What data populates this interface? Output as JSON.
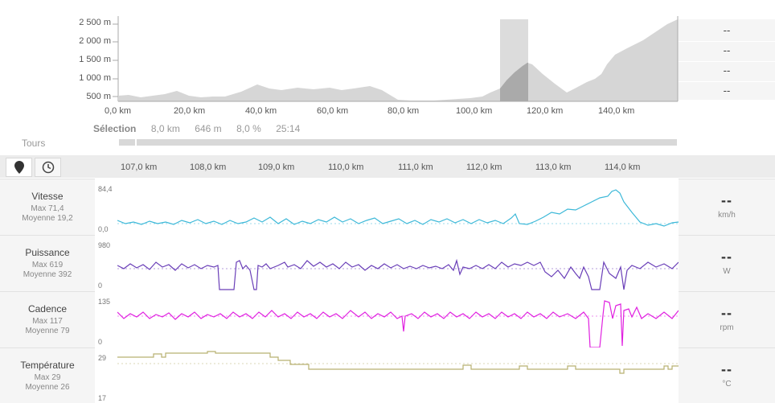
{
  "profile": {
    "y_ticks": [
      "2 500 m",
      "2 000 m",
      "1 500 m",
      "1 000 m",
      "500 m"
    ],
    "x_ticks": [
      "0,0 km",
      "20,0 km",
      "40,0 km",
      "60,0 km",
      "80,0 km",
      "100,0 km",
      "120,0 km",
      "140,0 km"
    ],
    "selection_range_km": [
      105,
      113
    ]
  },
  "selection": {
    "label": "Sélection",
    "distance": "8,0 km",
    "elevation": "646 m",
    "grade": "8,0 %",
    "time": "25:14"
  },
  "laps": {
    "label": "Tours"
  },
  "side_values": [
    "--",
    "--",
    "--",
    "--"
  ],
  "toolbar": {
    "location_icon": "location-pin-icon",
    "clock_icon": "clock-icon"
  },
  "detail_axis": {
    "ticks": [
      "107,0 km",
      "108,0 km",
      "109,0 km",
      "110,0 km",
      "111,0 km",
      "112,0 km",
      "113,0 km",
      "114,0 km"
    ]
  },
  "metrics": [
    {
      "name": "Vitesse",
      "max": "Max 71,4",
      "avg": "Moyenne 19,2",
      "top": "84,4",
      "bottom": "0,0",
      "value": "--",
      "unit": "km/h",
      "color": "#3cb8d8"
    },
    {
      "name": "Puissance",
      "max": "Max 619",
      "avg": "Moyenne 392",
      "top": "980",
      "bottom": "0",
      "value": "--",
      "unit": "W",
      "color": "#6a3fb8"
    },
    {
      "name": "Cadence",
      "max": "Max 117",
      "avg": "Moyenne 79",
      "top": "135",
      "bottom": "0",
      "value": "--",
      "unit": "rpm",
      "color": "#e020e0"
    },
    {
      "name": "Température",
      "max": "Max 29",
      "avg": "Moyenne 26",
      "top": "29",
      "bottom": "17",
      "value": "--",
      "unit": "°C",
      "color": "#b8b070"
    }
  ]
}
